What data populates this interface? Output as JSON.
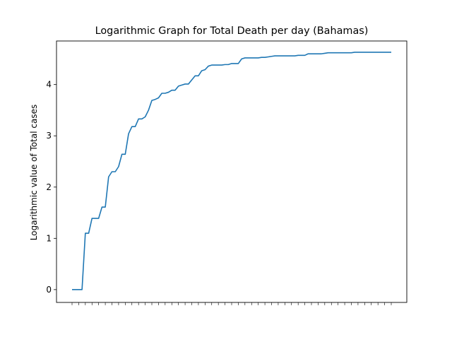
{
  "chart_data": {
    "type": "line",
    "title": "Logarithmic Graph for Total Death per day (Bahamas)",
    "xlabel": "",
    "ylabel": "Logarithmic value of Total cases",
    "ylim": [
      -0.25,
      4.85
    ],
    "yticks": [
      0,
      1,
      2,
      3,
      4
    ],
    "grid": false,
    "line_color": "#1f77b4",
    "series": [
      {
        "values": [
          0,
          0,
          0,
          0,
          1.1,
          1.1,
          1.39,
          1.39,
          1.39,
          1.61,
          1.61,
          2.2,
          2.3,
          2.3,
          2.4,
          2.64,
          2.64,
          3.04,
          3.18,
          3.18,
          3.33,
          3.33,
          3.37,
          3.5,
          3.69,
          3.71,
          3.74,
          3.83,
          3.83,
          3.85,
          3.89,
          3.89,
          3.97,
          3.99,
          4.01,
          4.01,
          4.09,
          4.17,
          4.17,
          4.27,
          4.29,
          4.36,
          4.38,
          4.38,
          4.38,
          4.38,
          4.39,
          4.39,
          4.41,
          4.41,
          4.41,
          4.5,
          4.52,
          4.52,
          4.52,
          4.52,
          4.52,
          4.53,
          4.53,
          4.54,
          4.55,
          4.56,
          4.56,
          4.56,
          4.56,
          4.56,
          4.56,
          4.56,
          4.57,
          4.57,
          4.57,
          4.6,
          4.6,
          4.6,
          4.6,
          4.6,
          4.61,
          4.62,
          4.62,
          4.62,
          4.62,
          4.62,
          4.62,
          4.62,
          4.62,
          4.63,
          4.63,
          4.63,
          4.63,
          4.63,
          4.63,
          4.63,
          4.63,
          4.63,
          4.63,
          4.63,
          4.63
        ]
      }
    ]
  }
}
